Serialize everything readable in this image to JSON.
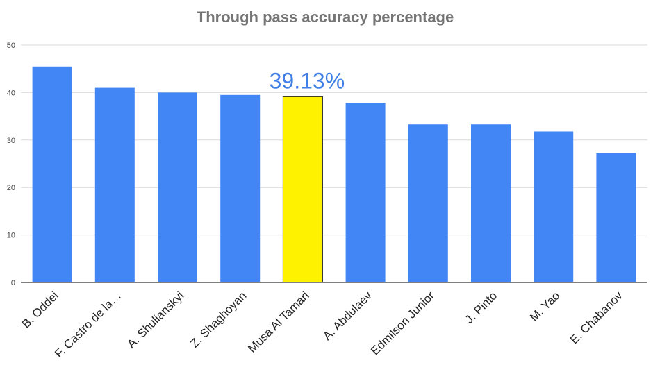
{
  "chart_data": {
    "type": "bar",
    "title": "Through pass accuracy percentage",
    "xlabel": "",
    "ylabel": "",
    "categories": [
      "B. Oddei",
      "F. Castro de la…",
      "A. Shulianskyi",
      "Z. Shaghoyan",
      "Musa Al Tamari",
      "A. Abdulaev",
      "Edmilson Junior",
      "J. Pinto",
      "M. Yao",
      "E. Chabanov"
    ],
    "values": [
      45.5,
      41,
      40,
      39.5,
      39.13,
      37.8,
      33.3,
      33.3,
      31.8,
      27.3
    ],
    "ylim": [
      0,
      50
    ],
    "yticks": [
      "0",
      "10",
      "20",
      "30",
      "40",
      "50"
    ],
    "grid": true,
    "highlight_index": 4,
    "annotation": {
      "text": "39.13%",
      "category_index": 4
    },
    "colors": {
      "bar": "#4285f4",
      "highlight": "#fff200",
      "highlight_border": "#222222",
      "annotation": "#3f7fe6",
      "grid": "#d9d9d9",
      "axis": "#333333"
    }
  }
}
